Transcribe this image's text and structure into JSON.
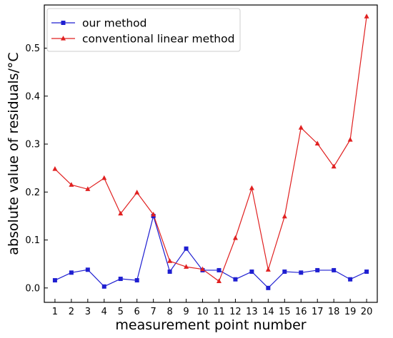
{
  "chart_data": {
    "type": "line",
    "xlabel": "measurement point number",
    "ylabel": "absolute value of residuals/°C",
    "xlim": [
      0.35,
      20.65
    ],
    "ylim": [
      -0.03,
      0.59
    ],
    "x": [
      1,
      2,
      3,
      4,
      5,
      6,
      7,
      8,
      9,
      10,
      11,
      12,
      13,
      14,
      15,
      16,
      17,
      18,
      19,
      20
    ],
    "xticks": [
      1,
      2,
      3,
      4,
      5,
      6,
      7,
      8,
      9,
      10,
      11,
      12,
      13,
      14,
      15,
      16,
      17,
      18,
      19,
      20
    ],
    "yticks": [
      "0.0",
      "0.1",
      "0.2",
      "0.3",
      "0.4",
      "0.5"
    ],
    "grid": false,
    "legend_position": "top-left",
    "series": [
      {
        "name": "our method",
        "color": "#1f1fd1",
        "marker": "square",
        "values": [
          0.016,
          0.032,
          0.038,
          0.003,
          0.019,
          0.016,
          0.15,
          0.034,
          0.082,
          0.037,
          0.037,
          0.018,
          0.034,
          0.0,
          0.034,
          0.032,
          0.037,
          0.037,
          0.018,
          0.034
        ]
      },
      {
        "name": "conventional linear method",
        "color": "#e02020",
        "marker": "triangle",
        "values": [
          0.248,
          0.215,
          0.206,
          0.229,
          0.155,
          0.199,
          0.153,
          0.056,
          0.044,
          0.039,
          0.014,
          0.104,
          0.208,
          0.038,
          0.149,
          0.334,
          0.301,
          0.253,
          0.309,
          0.566
        ]
      }
    ]
  }
}
